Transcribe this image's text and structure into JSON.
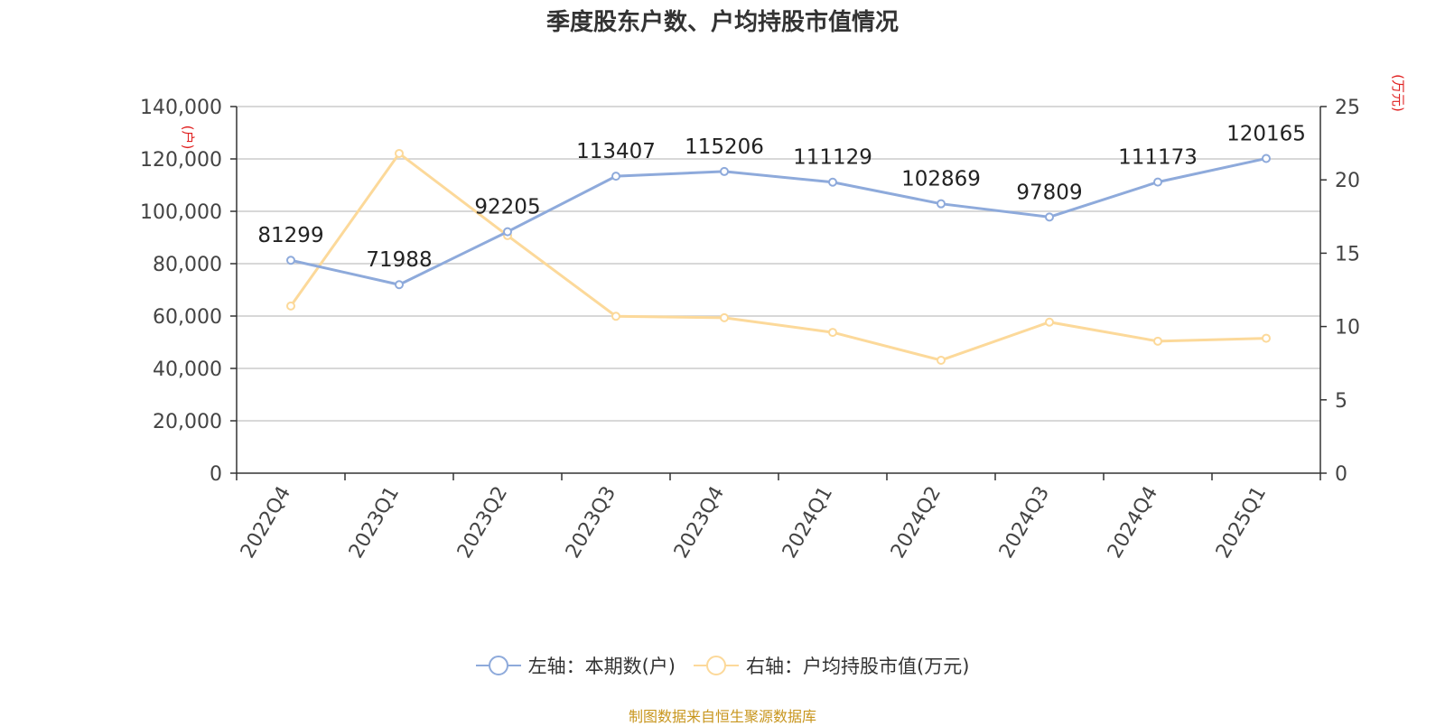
{
  "title": "季度股东户数、户均持股市值情况",
  "source": "制图数据来自恒生聚源数据库",
  "colors": {
    "series1": "#8eaadb",
    "series2": "#fcd99a",
    "axis_unit": "#e02020",
    "source": "#c8961e"
  },
  "chart_data": {
    "type": "line",
    "title": "季度股东户数、户均持股市值情况",
    "categories": [
      "2022Q4",
      "2023Q1",
      "2023Q2",
      "2023Q3",
      "2023Q4",
      "2024Q1",
      "2024Q2",
      "2024Q3",
      "2024Q4",
      "2025Q1"
    ],
    "left_axis": {
      "unit": "(户)",
      "ylim": [
        0,
        140000
      ],
      "ticks": [
        "0",
        "20,000",
        "40,000",
        "60,000",
        "80,000",
        "100,000",
        "120,000",
        "140,000"
      ],
      "tick_values": [
        0,
        20000,
        40000,
        60000,
        80000,
        100000,
        120000,
        140000
      ]
    },
    "right_axis": {
      "unit": "(万元)",
      "ylim": [
        0,
        25
      ],
      "ticks": [
        "0",
        "5",
        "10",
        "15",
        "20",
        "25"
      ],
      "tick_values": [
        0,
        5,
        10,
        15,
        20,
        25
      ]
    },
    "grid": true,
    "legend_position": "bottom-center",
    "series": [
      {
        "name": "左轴：本期数(户)",
        "axis": "left",
        "values": [
          81299,
          71988,
          92205,
          113407,
          115206,
          111129,
          102869,
          97809,
          111173,
          120165
        ],
        "labels": [
          "81299",
          "71988",
          "92205",
          "113407",
          "115206",
          "111129",
          "102869",
          "97809",
          "111173",
          "120165"
        ]
      },
      {
        "name": "右轴：户均持股市值(万元)",
        "axis": "right",
        "values": [
          11.4,
          21.8,
          16.2,
          10.7,
          10.6,
          9.6,
          7.7,
          10.3,
          9.0,
          9.2
        ]
      }
    ]
  }
}
